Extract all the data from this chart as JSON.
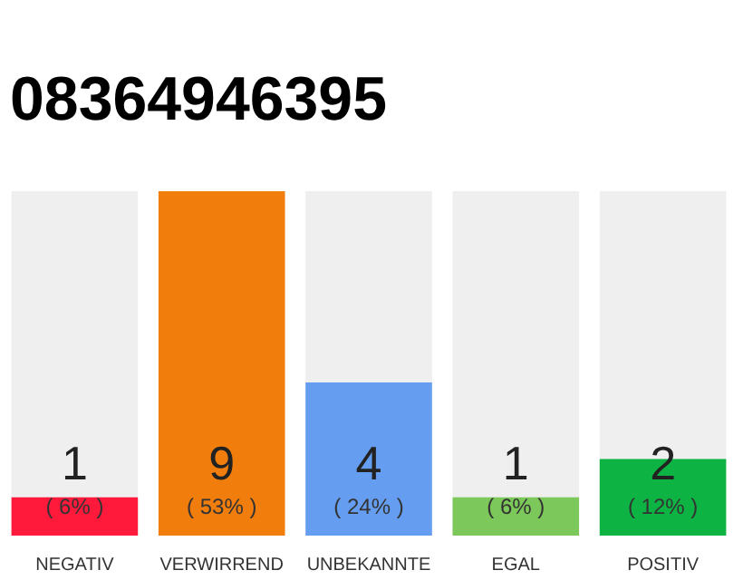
{
  "chart_data": {
    "type": "bar",
    "title": "08364946395",
    "categories": [
      "NEGATIV",
      "VERWIRREND",
      "UNBEKANNTE",
      "EGAL",
      "POSITIV"
    ],
    "values": [
      1,
      9,
      4,
      1,
      2
    ],
    "colors": [
      "#ff1a3c",
      "#f07d0c",
      "#659df0",
      "#7cc85a",
      "#0db443"
    ],
    "data_labels": true,
    "annotations": [
      "( 6% )",
      "( 53% )",
      "( 24% )",
      "( 6% )",
      "( 12% )"
    ],
    "tick_labels": "x",
    "grid": false
  }
}
